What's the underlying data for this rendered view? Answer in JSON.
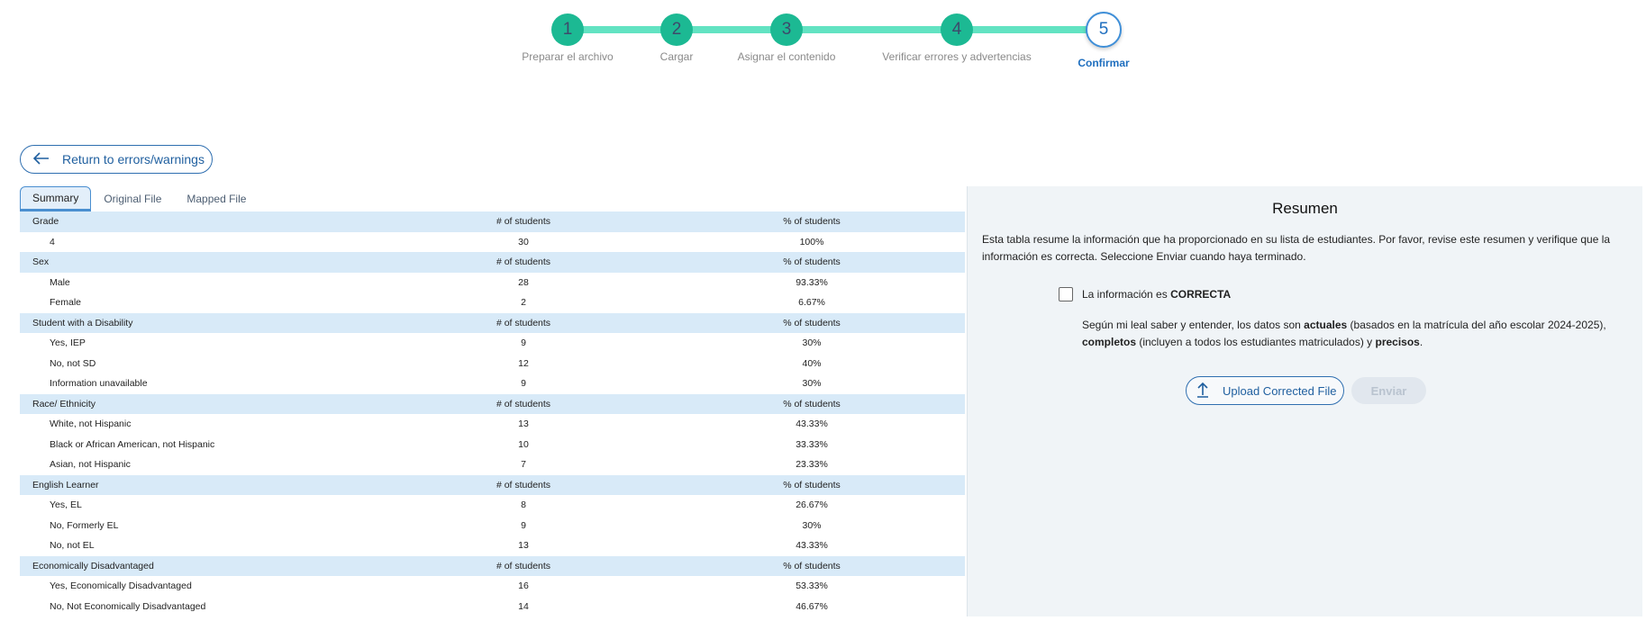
{
  "stepper": {
    "steps": [
      {
        "number": "1",
        "label": "Preparar el archivo"
      },
      {
        "number": "2",
        "label": "Cargar"
      },
      {
        "number": "3",
        "label": "Asignar el contenido"
      },
      {
        "number": "4",
        "label": "Verificar errores y advertencias"
      },
      {
        "number": "5",
        "label": "Confirmar",
        "active": true
      }
    ],
    "colors": {
      "complete": "#1cb993",
      "line": "#62e3c2",
      "active": "#1f6fbf"
    }
  },
  "back_button": {
    "label": "Return to errors/warnings",
    "icon": "arrow-left-icon"
  },
  "tabs": [
    {
      "label": "Summary",
      "active": true
    },
    {
      "label": "Original File"
    },
    {
      "label": "Mapped File"
    }
  ],
  "table": {
    "col_count": "# of students",
    "col_pct": "% of students",
    "groups": [
      {
        "title": "Grade",
        "rows": [
          [
            "4",
            "30",
            "100%"
          ]
        ]
      },
      {
        "title": "Sex",
        "rows": [
          [
            "Male",
            "28",
            "93.33%"
          ],
          [
            "Female",
            "2",
            "6.67%"
          ]
        ]
      },
      {
        "title": "Student with a Disability",
        "rows": [
          [
            "Yes, IEP",
            "9",
            "30%"
          ],
          [
            "No, not SD",
            "12",
            "40%"
          ],
          [
            "Information unavailable",
            "9",
            "30%"
          ]
        ]
      },
      {
        "title": "Race/ Ethnicity",
        "rows": [
          [
            "White, not Hispanic",
            "13",
            "43.33%"
          ],
          [
            "Black or African American, not Hispanic",
            "10",
            "33.33%"
          ],
          [
            "Asian, not Hispanic",
            "7",
            "23.33%"
          ]
        ]
      },
      {
        "title": "English Learner",
        "rows": [
          [
            "Yes, EL",
            "8",
            "26.67%"
          ],
          [
            "No, Formerly EL",
            "9",
            "30%"
          ],
          [
            "No, not EL",
            "13",
            "43.33%"
          ]
        ]
      },
      {
        "title": "Economically Disadvantaged",
        "rows": [
          [
            "Yes, Economically Disadvantaged",
            "16",
            "53.33%"
          ],
          [
            "No, Not Economically Disadvantaged",
            "14",
            "46.67%"
          ]
        ]
      }
    ]
  },
  "panel": {
    "title": "Resumen",
    "description": "Esta tabla resume la información que ha proporcionado en su lista de estudiantes. Por favor, revise este resumen y verifique que la información es correcta. Seleccione Enviar cuando haya terminado.",
    "checkbox": {
      "label_prefix": "La información es ",
      "label_bold": "CORRECTA",
      "checked": false
    },
    "statement": {
      "p1": "Según mi leal saber y entender, los datos son ",
      "b1": "actuales",
      "p2": " (basados en la matrícula del año escolar 2024-2025), ",
      "b2": "completos",
      "p3": " (incluyen a todos los estudiantes matriculados) y ",
      "b3": "precisos",
      "p4": "."
    },
    "upload_label": "Upload Corrected File",
    "send_label": "Enviar"
  }
}
